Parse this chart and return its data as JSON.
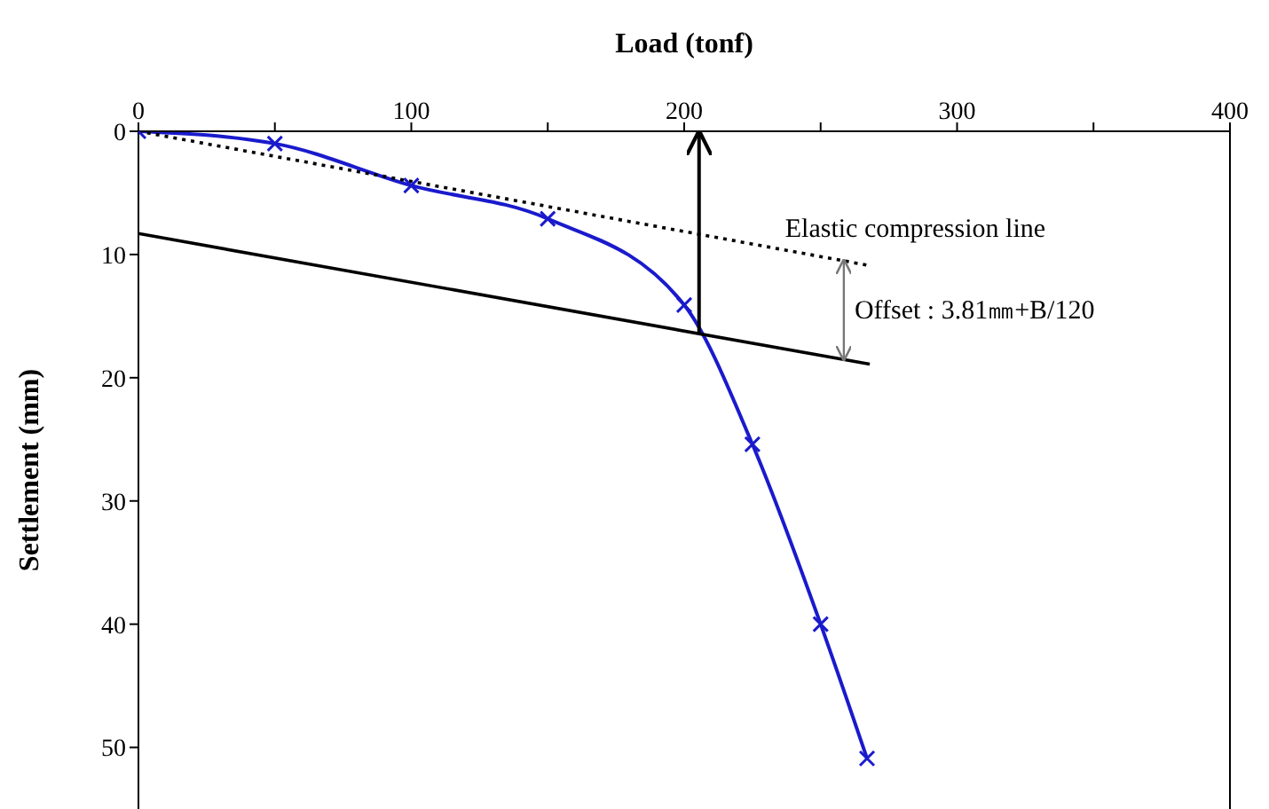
{
  "chart_data": {
    "type": "line",
    "xlabel": "Load (tonf)",
    "ylabel": "Settlement (mm)",
    "xlim": [
      0,
      400
    ],
    "xticks": [
      0,
      {
        "value": 50,
        "label": null
      },
      100,
      {
        "value": 150,
        "label": null
      },
      200,
      {
        "value": 250,
        "label": null
      },
      300,
      {
        "value": 350,
        "label": null
      },
      400
    ],
    "ylim": [
      55,
      0
    ],
    "yticks": [
      0,
      10,
      20,
      30,
      40,
      50
    ],
    "series": [
      {
        "color": "#1a1acc",
        "x": [
          0,
          50,
          100,
          150,
          200,
          225,
          250,
          267
        ],
        "values": [
          0,
          1.0,
          4.4,
          7.1,
          14.1,
          25.4,
          40,
          50.9
        ],
        "marker": "cross",
        "line_style": "solid"
      },
      {
        "name": "Elastic compression line",
        "color": "#000000",
        "x": [
          0,
          268
        ],
        "values": [
          0,
          10.9
        ],
        "marker": "none",
        "line_style": "dotted"
      },
      {
        "color": "#000000",
        "x": [
          0,
          268
        ],
        "values": [
          8.3,
          18.9
        ],
        "marker": "none",
        "line_style": "solid"
      }
    ],
    "annotations": [
      "Offset : 3.81㎜+B/120"
    ]
  }
}
